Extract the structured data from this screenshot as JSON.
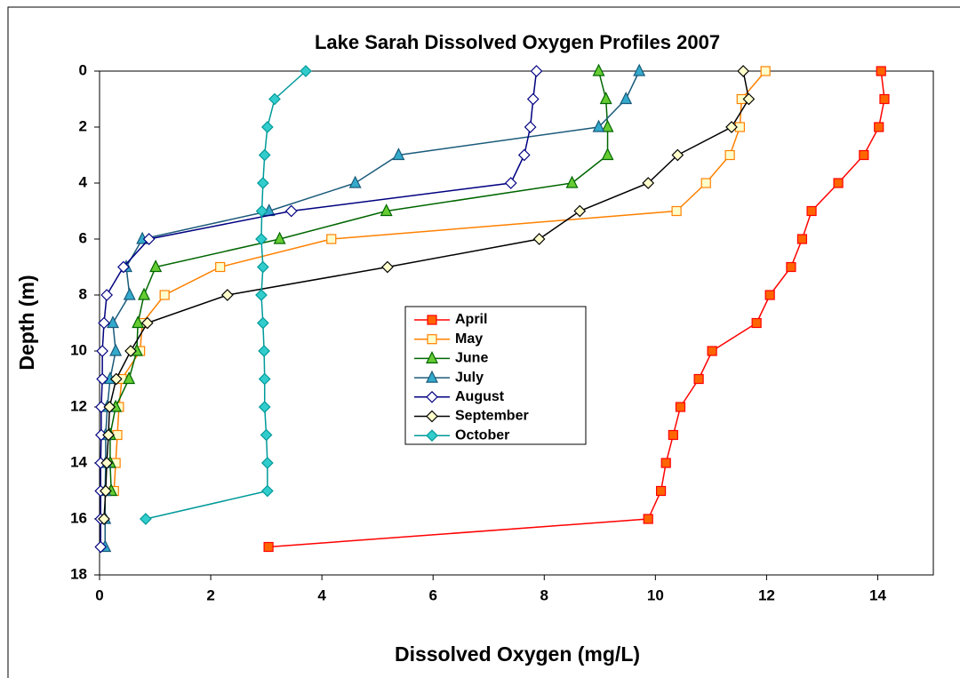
{
  "chart_data": {
    "type": "line",
    "title": "Lake Sarah Dissolved Oxygen Profiles 2007",
    "x_label": "Dissolved Oxygen (mg/L)",
    "y_label": "Depth (m)",
    "xlim": [
      0,
      15
    ],
    "xticks": [
      0,
      2,
      4,
      6,
      8,
      10,
      12,
      14
    ],
    "ylim": [
      0,
      18
    ],
    "yticks": [
      0,
      2,
      4,
      6,
      8,
      10,
      12,
      14,
      16,
      18
    ],
    "y_reversed": true,
    "legend": "center",
    "series": [
      {
        "name": "April",
        "color": "#ff0000",
        "marker": "square",
        "marker_fill": "#ff6600",
        "x": [
          14.06,
          14.12,
          14.02,
          13.75,
          13.29,
          12.81,
          12.64,
          12.44,
          12.06,
          11.82,
          11.02,
          10.78,
          10.45,
          10.32,
          10.19,
          10.1,
          9.87,
          3.04
        ],
        "y": [
          0,
          1,
          2,
          3,
          4,
          5,
          6,
          7,
          8,
          9,
          10,
          11,
          12,
          13,
          14,
          15,
          16,
          17
        ]
      },
      {
        "name": "May",
        "color": "#ff8000",
        "marker": "square",
        "marker_fill": "#ffffcc",
        "x": [
          11.98,
          11.55,
          11.52,
          11.34,
          10.91,
          10.38,
          4.17,
          2.17,
          1.17,
          0.77,
          0.73,
          0.4,
          0.35,
          0.32,
          0.29,
          0.26
        ],
        "y": [
          0,
          1,
          2,
          3,
          4,
          5,
          6,
          7,
          8,
          9,
          10,
          11,
          12,
          13,
          14,
          15
        ]
      },
      {
        "name": "June",
        "color": "#006600",
        "marker": "triangle",
        "marker_fill": "#66cc33",
        "x": [
          8.98,
          9.11,
          9.14,
          9.14,
          8.5,
          5.16,
          3.24,
          1.01,
          0.8,
          0.69,
          0.67,
          0.53,
          0.29,
          0.19,
          0.19,
          0.21
        ],
        "y": [
          0,
          1,
          2,
          3,
          4,
          5,
          6,
          7,
          8,
          9,
          10,
          11,
          12,
          13,
          14,
          15
        ]
      },
      {
        "name": "July",
        "color": "#1a5a7a",
        "marker": "triangle",
        "marker_fill": "#33aacc",
        "x": [
          9.71,
          9.47,
          8.98,
          5.38,
          4.6,
          3.05,
          0.77,
          0.48,
          0.54,
          0.24,
          0.29,
          0.19,
          0.14,
          0.11,
          0.11,
          0.1,
          0.1,
          0.1
        ],
        "y": [
          0,
          1,
          2,
          3,
          4,
          5,
          6,
          7,
          8,
          9,
          10,
          11,
          12,
          13,
          14,
          15,
          16,
          17
        ]
      },
      {
        "name": "August",
        "color": "#000080",
        "marker": "diamond",
        "marker_fill": "#ffffff",
        "x": [
          7.86,
          7.8,
          7.75,
          7.64,
          7.4,
          3.45,
          0.89,
          0.43,
          0.13,
          0.08,
          0.05,
          0.05,
          0.03,
          0.03,
          0.02,
          0.02,
          0.02,
          0.02
        ],
        "y": [
          0,
          1,
          2,
          3,
          4,
          5,
          6,
          7,
          8,
          9,
          10,
          11,
          12,
          13,
          14,
          15,
          16,
          17
        ]
      },
      {
        "name": "September",
        "color": "#000000",
        "marker": "diamond",
        "marker_fill": "#ffffcc",
        "x": [
          11.58,
          11.68,
          11.37,
          10.4,
          9.87,
          8.64,
          7.91,
          5.18,
          2.3,
          0.86,
          0.56,
          0.3,
          0.18,
          0.16,
          0.13,
          0.11,
          0.08
        ],
        "y": [
          0,
          1,
          2,
          3,
          4,
          5,
          6,
          7,
          8,
          9,
          10,
          11,
          12,
          13,
          14,
          15,
          16
        ]
      },
      {
        "name": "October",
        "color": "#009999",
        "marker": "diamond",
        "marker_fill": "#33cccc",
        "x": [
          3.71,
          3.15,
          3.02,
          2.97,
          2.94,
          2.92,
          2.91,
          2.94,
          2.91,
          2.94,
          2.96,
          2.97,
          2.97,
          3.0,
          3.02,
          3.02,
          0.83
        ],
        "y": [
          0,
          1,
          2,
          3,
          4,
          5,
          6,
          7,
          8,
          9,
          10,
          11,
          12,
          13,
          14,
          15,
          16
        ]
      }
    ]
  }
}
